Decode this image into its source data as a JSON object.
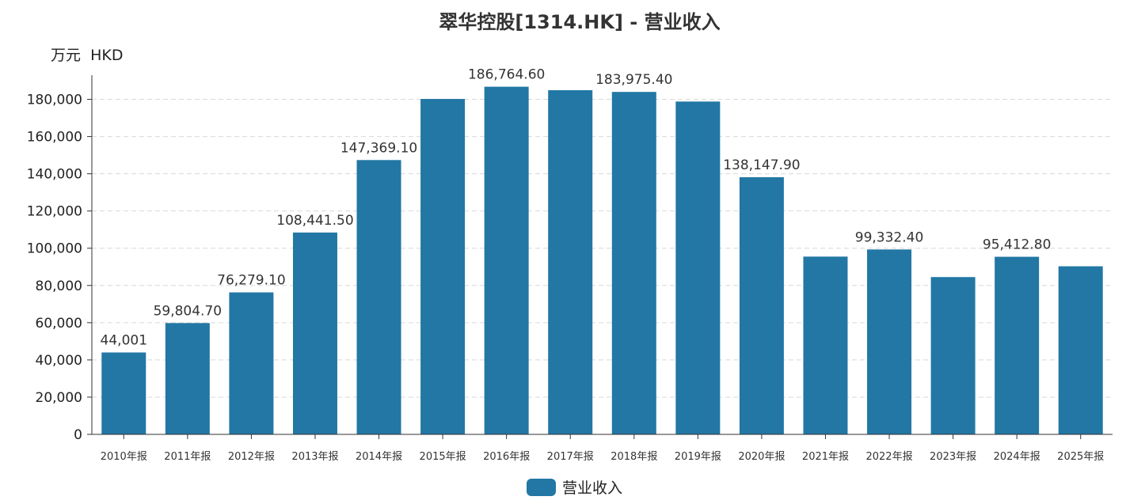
{
  "chart_data": {
    "type": "bar",
    "title": "翠华控股[1314.HK] - 营业收入",
    "unit_label": "万元  HKD",
    "categories": [
      "2010年报",
      "2011年报",
      "2012年报",
      "2013年报",
      "2014年报",
      "2015年报",
      "2016年报",
      "2017年报",
      "2018年报",
      "2019年报",
      "2020年报",
      "2021年报",
      "2022年报",
      "2023年报",
      "2024年报",
      "2025年报"
    ],
    "series": [
      {
        "name": "营业收入",
        "color": "#2277a4",
        "values": [
          44001,
          59804.7,
          76279.1,
          108441.5,
          147369.1,
          180200,
          186764.6,
          184900,
          183975.4,
          178800,
          138147.9,
          95500,
          99332.4,
          84500,
          95412.8,
          90300
        ],
        "labels": [
          "44,001",
          "59,804.70",
          "76,279.10",
          "108,441.50",
          "147,369.10",
          "",
          "186,764.60",
          "",
          "183,975.40",
          "",
          "138,147.90",
          "",
          "99,332.40",
          "",
          "95,412.80",
          ""
        ]
      }
    ],
    "ylim": [
      0,
      190000
    ],
    "yticks": [
      0,
      20000,
      40000,
      60000,
      80000,
      100000,
      120000,
      140000,
      160000,
      180000
    ],
    "ytick_labels": [
      "0",
      "20,000",
      "40,000",
      "60,000",
      "80,000",
      "100,000",
      "120,000",
      "140,000",
      "160,000",
      "180,000"
    ],
    "grid": true,
    "legend_position": "bottom-center"
  }
}
